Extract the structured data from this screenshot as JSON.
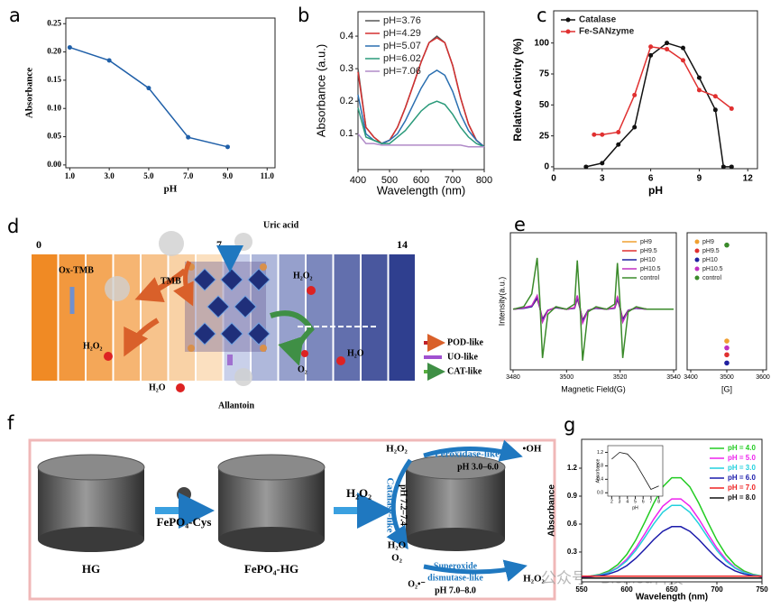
{
  "chart_data": [
    {
      "type": "line",
      "panel": "a",
      "x_label": "pH",
      "y_label": "Absorbance",
      "markers": true,
      "x": [
        1,
        3,
        5,
        7,
        9
      ],
      "series": [
        {
          "color": "#1f5fa8",
          "values": [
            0.208,
            0.185,
            0.136,
            0.049,
            0.032
          ]
        }
      ],
      "xlim": [
        0.8,
        11.4
      ],
      "ylim": [
        -0.005,
        0.26
      ],
      "xticks": [
        {
          "value": 1,
          "label": "1.0"
        },
        {
          "value": 3,
          "label": "3.0"
        },
        {
          "value": 5,
          "label": "5.0"
        },
        {
          "value": 7,
          "label": "7.0"
        },
        {
          "value": 9,
          "label": "9.0"
        },
        {
          "value": 11,
          "label": "11.0"
        }
      ],
      "yticks": [
        {
          "value": 0,
          "label": "0.00"
        },
        0.05,
        {
          "value": 0.1,
          "label": "0.10"
        },
        0.15,
        {
          "value": 0.2,
          "label": "0.20"
        },
        0.25
      ]
    },
    {
      "type": "line",
      "panel": "b",
      "x_label": "Wavelength (nm)",
      "y_label": "Absorbance (a.u.)",
      "legend": "upper left",
      "x": [
        400,
        425,
        450,
        475,
        500,
        525,
        550,
        575,
        600,
        625,
        650,
        675,
        700,
        725,
        750,
        775,
        800
      ],
      "series": [
        {
          "name": "pH=3.76",
          "color": "#555555",
          "values": [
            0.3,
            0.12,
            0.09,
            0.07,
            0.08,
            0.12,
            0.18,
            0.25,
            0.32,
            0.38,
            0.4,
            0.38,
            0.31,
            0.21,
            0.13,
            0.08,
            0.06
          ]
        },
        {
          "name": "pH=4.29",
          "color": "#d43030",
          "values": [
            0.29,
            0.12,
            0.09,
            0.07,
            0.08,
            0.12,
            0.18,
            0.25,
            0.32,
            0.38,
            0.395,
            0.38,
            0.31,
            0.21,
            0.13,
            0.08,
            0.06
          ]
        },
        {
          "name": "pH=5.07",
          "color": "#2a6fb0",
          "values": [
            0.22,
            0.1,
            0.08,
            0.07,
            0.08,
            0.1,
            0.14,
            0.19,
            0.24,
            0.28,
            0.295,
            0.28,
            0.23,
            0.16,
            0.11,
            0.08,
            0.06
          ]
        },
        {
          "name": "pH=6.02",
          "color": "#2a9a7a",
          "values": [
            0.18,
            0.09,
            0.08,
            0.07,
            0.07,
            0.09,
            0.11,
            0.14,
            0.17,
            0.19,
            0.2,
            0.19,
            0.16,
            0.12,
            0.09,
            0.07,
            0.06
          ]
        },
        {
          "name": "pH=7.06",
          "color": "#b08ac8",
          "values": [
            0.1,
            0.07,
            0.07,
            0.065,
            0.065,
            0.065,
            0.065,
            0.065,
            0.065,
            0.065,
            0.065,
            0.065,
            0.065,
            0.065,
            0.06,
            0.06,
            0.06
          ]
        }
      ],
      "xlim": [
        400,
        800
      ],
      "ylim": [
        -0.01,
        0.475
      ],
      "xticks": [
        400,
        500,
        600,
        700,
        800
      ],
      "yticks": [
        0.1,
        0.2,
        0.3,
        0.4
      ]
    },
    {
      "type": "line",
      "panel": "c",
      "x_label": "pH",
      "y_label": "Relative Activity (%)",
      "legend": "upper left",
      "markers": true,
      "series": [
        {
          "name": "Catalase",
          "color": "#111111",
          "x": [
            2,
            3,
            4,
            5,
            6,
            7,
            8,
            9,
            10,
            10.5,
            11
          ],
          "values": [
            0,
            3,
            18,
            32,
            90,
            100,
            96,
            72,
            46,
            0,
            0
          ]
        },
        {
          "name": "Fe-SANzyme",
          "color": "#e03030",
          "x": [
            2.5,
            3,
            4,
            5,
            6,
            7,
            8,
            9,
            10,
            11
          ],
          "values": [
            26,
            26,
            28,
            58,
            97,
            95,
            86,
            62,
            57,
            47
          ]
        }
      ],
      "xlim": [
        0,
        12.6
      ],
      "ylim": [
        -1.5,
        126
      ],
      "xticks": [
        0,
        3,
        6,
        9,
        12
      ],
      "yticks": [
        0,
        25,
        50,
        75,
        100
      ]
    },
    {
      "type": "line",
      "panel": "e",
      "x_label": "Magnetic Field(G)",
      "y_label": "Intensity(a.u.)",
      "legend": "upper right",
      "x": [
        3480,
        3484,
        3487,
        3489,
        3490,
        3491,
        3493,
        3496,
        3500,
        3503,
        3504,
        3505,
        3506,
        3508,
        3511,
        3515,
        3518,
        3519,
        3520,
        3521,
        3523,
        3526,
        3530,
        3535,
        3540
      ],
      "series": [
        {
          "name": "pH9",
          "color": "#f0a030",
          "values": [
            0,
            0.02,
            0.05,
            0.2,
            0.03,
            -0.18,
            -0.02,
            0.03,
            0,
            0.02,
            0.2,
            0.02,
            -0.2,
            -0.02,
            0.02,
            0,
            0.02,
            0.18,
            0.02,
            -0.18,
            -0.02,
            0.02,
            0,
            0,
            0
          ]
        },
        {
          "name": "pH9.5",
          "color": "#e03030",
          "values": [
            0,
            0.03,
            0.06,
            0.25,
            0.04,
            -0.23,
            -0.03,
            0.04,
            0,
            0.03,
            0.25,
            0.03,
            -0.25,
            -0.03,
            0.03,
            0,
            0.03,
            0.23,
            0.03,
            -0.23,
            -0.03,
            0.03,
            0,
            0,
            0
          ]
        },
        {
          "name": "pH10",
          "color": "#2020a0",
          "values": [
            0,
            0.02,
            0.05,
            0.22,
            0.03,
            -0.2,
            -0.02,
            0.03,
            0,
            0.02,
            0.22,
            0.02,
            -0.22,
            -0.02,
            0.02,
            0,
            0.02,
            0.2,
            0.02,
            -0.2,
            -0.02,
            0.02,
            0,
            0,
            0
          ]
        },
        {
          "name": "pH10.5",
          "color": "#c030c0",
          "values": [
            0,
            0.03,
            0.07,
            0.27,
            0.04,
            -0.25,
            -0.03,
            0.04,
            0,
            0.03,
            0.27,
            0.03,
            -0.27,
            -0.03,
            0.03,
            0,
            0.03,
            0.25,
            0.03,
            -0.25,
            -0.03,
            0.03,
            0,
            0,
            0
          ]
        },
        {
          "name": "control",
          "color": "#3a8a2a",
          "values": [
            0,
            0.05,
            0.3,
            1.0,
            0.2,
            -0.95,
            -0.1,
            0.05,
            0,
            0.1,
            0.95,
            0.1,
            -1.0,
            -0.05,
            0.05,
            0,
            0.1,
            0.9,
            0.1,
            -0.95,
            -0.05,
            0.05,
            0,
            0,
            0
          ]
        }
      ],
      "xlim": [
        3479,
        3541
      ],
      "ylim": [
        -1.18,
        1.49
      ],
      "xticks": [
        3480,
        3500,
        3520,
        3540
      ]
    },
    {
      "type": "scatter",
      "x_label": "[G]",
      "legend": "upper left",
      "x": [
        3500
      ],
      "series": [
        {
          "name": "pH9",
          "color": "#f0a030",
          "values": [
            0.21
          ]
        },
        {
          "name": "pH9.5",
          "color": "#e03030",
          "values": [
            0.11
          ]
        },
        {
          "name": "pH10",
          "color": "#2020a0",
          "values": [
            0.05
          ]
        },
        {
          "name": "pH10.5",
          "color": "#c030c0",
          "values": [
            0.16
          ]
        },
        {
          "name": "control",
          "color": "#3a8a2a",
          "values": [
            0.91
          ]
        }
      ],
      "xlim": [
        3390,
        3610
      ],
      "ylim": [
        0,
        1
      ],
      "xticks": [
        3400,
        3500,
        3600
      ]
    },
    {
      "type": "line",
      "panel": "g",
      "x_label": "Wavelength (nm)",
      "y_label": "Absorbance",
      "legend": "upper right",
      "legend_text_colored": true,
      "x": [
        550,
        560,
        570,
        580,
        590,
        600,
        610,
        620,
        630,
        640,
        650,
        660,
        670,
        680,
        690,
        700,
        710,
        720,
        730,
        740,
        750
      ],
      "series": [
        {
          "name": "pH = 4.0",
          "color": "#22cc22",
          "values": [
            0.035,
            0.043,
            0.06,
            0.097,
            0.164,
            0.272,
            0.427,
            0.62,
            0.823,
            1.0,
            1.097,
            1.097,
            1.0,
            0.823,
            0.62,
            0.427,
            0.272,
            0.164,
            0.097,
            0.06,
            0.043
          ]
        },
        {
          "name": "pH = 5.0",
          "color": "#ee22ee",
          "values": [
            0.034,
            0.04,
            0.054,
            0.083,
            0.135,
            0.221,
            0.343,
            0.494,
            0.654,
            0.791,
            0.87,
            0.87,
            0.791,
            0.654,
            0.494,
            0.343,
            0.221,
            0.135,
            0.083,
            0.054,
            0.04
          ]
        },
        {
          "name": "pH = 3.0",
          "color": "#22d0dd",
          "values": [
            0.033,
            0.039,
            0.052,
            0.079,
            0.127,
            0.205,
            0.317,
            0.456,
            0.603,
            0.728,
            0.801,
            0.801,
            0.728,
            0.603,
            0.456,
            0.317,
            0.205,
            0.127,
            0.079,
            0.052,
            0.039
          ]
        },
        {
          "name": "pH = 6.0",
          "color": "#1a1aaa",
          "values": [
            0.032,
            0.036,
            0.046,
            0.064,
            0.098,
            0.153,
            0.232,
            0.33,
            0.434,
            0.522,
            0.573,
            0.573,
            0.522,
            0.434,
            0.33,
            0.232,
            0.153,
            0.098,
            0.064,
            0.046,
            0.036
          ]
        },
        {
          "name": "pH = 7.0",
          "color": "#ee2222",
          "x": [
            550,
            750
          ],
          "values": [
            0.04,
            0.04
          ]
        },
        {
          "name": "pH = 8.0",
          "color": "#111111",
          "x": [
            550,
            750
          ],
          "values": [
            0.02,
            0.02
          ]
        }
      ],
      "xlim": [
        550,
        750
      ],
      "ylim": [
        -0.02,
        1.51
      ],
      "xticks": [
        550,
        600,
        650,
        700,
        750
      ],
      "yticks": [
        0.3,
        0.6,
        0.9,
        1.2
      ]
    },
    {
      "type": "line",
      "x_label": "pH",
      "y_label": "Absorbance",
      "x": [
        2,
        3,
        4,
        5,
        6,
        7,
        8
      ],
      "series": [
        {
          "color": "#111111",
          "values": [
            1.0,
            1.2,
            1.15,
            0.9,
            0.5,
            0.1,
            0.2
          ]
        }
      ],
      "xlim": [
        1.5,
        8.5
      ],
      "ylim": [
        -0.1,
        1.4
      ],
      "xticks": [
        2,
        3,
        4,
        5,
        6,
        7,
        8
      ],
      "yticks": [
        {
          "value": 0,
          "label": "0.0"
        },
        0.4,
        0.8,
        1.2
      ]
    }
  ],
  "diagrams": {
    "d": {
      "panel": "d",
      "scale": [
        0,
        7,
        14
      ],
      "uric_acid": "Uric acid",
      "allantoin": "Allantoin",
      "ox_tmb": "Ox-TMB",
      "tmb": "TMB",
      "h2o2": [
        "H₂O₂",
        "H₂O₂"
      ],
      "h2o": [
        "H₂O",
        "H₂O"
      ],
      "o2": "O₂",
      "legend": [
        "POD-like",
        "UO-like",
        "CAT-like"
      ]
    },
    "f": {
      "panel": "f",
      "hg": "HG",
      "reagent": "FePO₄-Cys",
      "product": "FePO₄-HG",
      "h2o2": [
        "H₂O₂",
        "H₂O₂",
        "H₂O₂"
      ],
      "peroxidase": "Peroxidase-like",
      "peroxidase_ph": "pH 3.0–6.0",
      "oh": "•OH",
      "catalase": "Catalase-like",
      "catalase_ph": "pH 7.2–7.4",
      "h2o": "H₂O",
      "o2": "O₂",
      "sod": [
        "Superoxide",
        "dismutase-like"
      ],
      "sod_ph": "pH 7.0–8.0",
      "superoxide": "O₂•⁻"
    },
    "watermark": "公众号 · BioMed科技"
  }
}
